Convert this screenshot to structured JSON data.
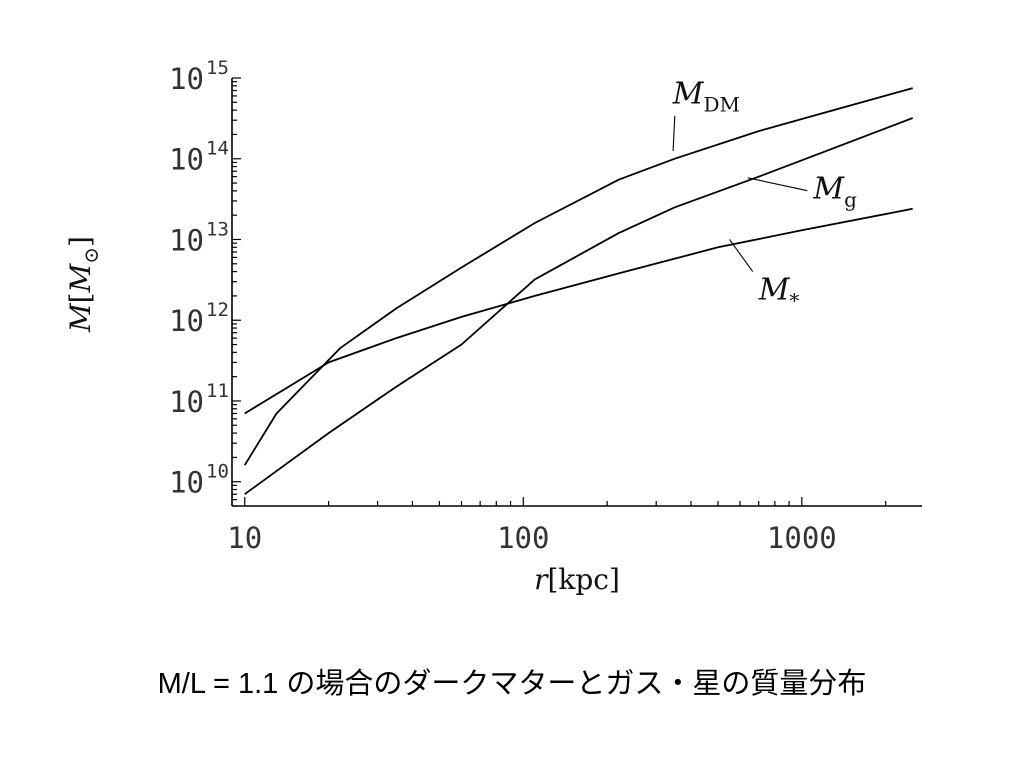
{
  "caption": "M/L = 1.1 の場合のダークマターとガス・星の質量分布",
  "chart_data": {
    "type": "line",
    "xscale": "log",
    "yscale": "log",
    "xlim": [
      9,
      2700
    ],
    "ylim": [
      5000000000.0,
      1000000000000000.0
    ],
    "xlabel": {
      "base": "r",
      "unit": "[kpc]"
    },
    "ylabel": {
      "base": "M",
      "bracket_open": "[",
      "inner": "M",
      "sub": "⊙",
      "bracket_close": "]"
    },
    "x_ticks": [
      {
        "value": 10,
        "label": "10"
      },
      {
        "value": 100,
        "label": "100"
      },
      {
        "value": 1000,
        "label": "1000"
      }
    ],
    "y_ticks": [
      {
        "value": 10000000000.0,
        "base": "10",
        "exp": "10"
      },
      {
        "value": 100000000000.0,
        "base": "10",
        "exp": "11"
      },
      {
        "value": 1000000000000.0,
        "base": "10",
        "exp": "12"
      },
      {
        "value": 10000000000000.0,
        "base": "10",
        "exp": "13"
      },
      {
        "value": 100000000000000.0,
        "base": "10",
        "exp": "14"
      },
      {
        "value": 1000000000000000.0,
        "base": "10",
        "exp": "15"
      }
    ],
    "series": [
      {
        "name": "M",
        "sub": "DM",
        "color": "#000000",
        "x": [
          10,
          13,
          22,
          35,
          60,
          110,
          220,
          350,
          700,
          1300,
          2500
        ],
        "y": [
          16000000000.0,
          70000000000.0,
          450000000000.0,
          1400000000000.0,
          4500000000000.0,
          16000000000000.0,
          55000000000000.0,
          100000000000000.0,
          220000000000000.0,
          400000000000000.0,
          750000000000000.0
        ],
        "label_at": [
          350,
          130000000000000.0
        ],
        "anchor": [
          345,
          125000000000000.0
        ],
        "text_pos": [
          380,
          480000000000000.0
        ]
      },
      {
        "name": "M",
        "sub": "g",
        "color": "#000000",
        "x": [
          10,
          20,
          35,
          60,
          110,
          220,
          350,
          700,
          1300,
          2500
        ],
        "y": [
          7000000000.0,
          40000000000.0,
          150000000000.0,
          500000000000.0,
          3200000000000.0,
          12000000000000.0,
          25000000000000.0,
          60000000000000.0,
          135000000000000.0,
          320000000000000.0
        ],
        "anchor": [
          640,
          58000000000000.0
        ],
        "text_pos": [
          1100,
          32000000000000.0
        ]
      },
      {
        "name": "M",
        "sub": "*",
        "color": "#000000",
        "x": [
          10,
          20,
          35,
          60,
          110,
          220,
          500,
          1000,
          2500
        ],
        "y": [
          70000000000.0,
          300000000000.0,
          600000000000.0,
          1100000000000.0,
          2000000000000.0,
          3800000000000.0,
          8000000000000.0,
          13000000000000.0,
          24000000000000.0
        ],
        "anchor": [
          550,
          10000000000000.0
        ],
        "text_pos": [
          700,
          1800000000000.0
        ]
      }
    ]
  }
}
